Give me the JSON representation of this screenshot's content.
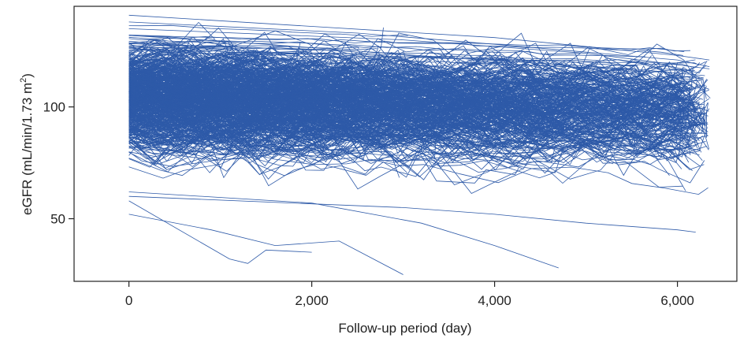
{
  "chart_data": {
    "type": "line",
    "title": "",
    "xlabel": "Follow-up period (day)",
    "ylabel_main": "eGFR (mL/min/1.73 m",
    "ylabel_sup": "2",
    "ylabel_close": ")",
    "xlim": [
      -600,
      6650
    ],
    "ylim": [
      22,
      145
    ],
    "x_ticks": [
      0,
      2000,
      4000,
      6000
    ],
    "x_tick_labels": [
      "0",
      "2,000",
      "4,000",
      "6,000"
    ],
    "y_ticks": [
      50,
      100
    ],
    "y_tick_labels": [
      "50",
      "100"
    ],
    "grid": false,
    "legend": "none",
    "line_color": "#2e5aa8",
    "series_count": 600,
    "series": [
      {
        "x": [
          0,
          900,
          1600,
          2300,
          3000
        ],
        "y": [
          52,
          45,
          38,
          40,
          25
        ]
      },
      {
        "x": [
          0,
          1100,
          1300,
          1500,
          2000
        ],
        "y": [
          58,
          32,
          30,
          36,
          35
        ]
      },
      {
        "x": [
          0,
          2000,
          3200,
          4000,
          4700
        ],
        "y": [
          62,
          57,
          48,
          38,
          28
        ]
      },
      {
        "x": [
          0,
          3000,
          4000,
          5000,
          6000,
          6200
        ],
        "y": [
          60,
          55,
          52,
          48,
          45,
          44
        ]
      },
      {
        "x": [
          0,
          2000,
          4000,
          6000,
          6350
        ],
        "y": [
          141,
          136,
          131,
          123,
          121
        ]
      },
      {
        "x": [
          0,
          2500,
          4000,
          6000,
          6350
        ],
        "y": [
          138,
          133,
          128,
          121,
          118
        ]
      },
      {
        "x": [
          0,
          3000,
          5000,
          6350
        ],
        "y": [
          135,
          130,
          124,
          117
        ]
      },
      {
        "x": [
          0,
          1500,
          3500,
          5500,
          6300
        ],
        "y": [
          132,
          128,
          122,
          117,
          114
        ]
      }
    ]
  }
}
